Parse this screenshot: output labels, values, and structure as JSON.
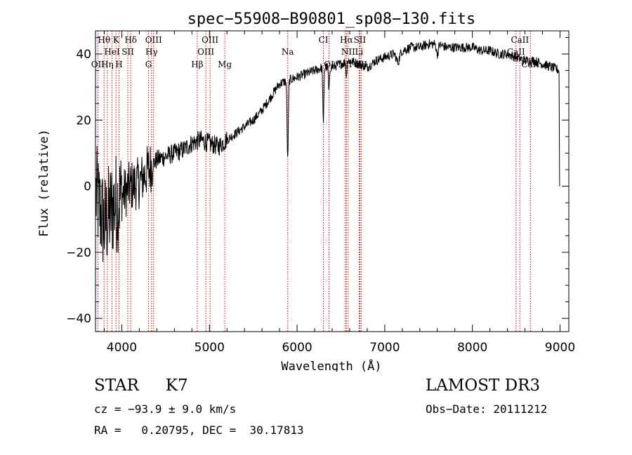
{
  "chart_data": {
    "type": "line",
    "title": "spec−55908−B90801_sp08−130.fits",
    "xlabel": "Wavelength (Å)",
    "ylabel": "Flux (relative)",
    "xlim": [
      3700,
      9100
    ],
    "ylim": [
      -44,
      47
    ],
    "xticks": [
      {
        "value": 4000,
        "label": "4000"
      },
      {
        "value": 5000,
        "label": "5000"
      },
      {
        "value": 6000,
        "label": "6000"
      },
      {
        "value": 7000,
        "label": "7000"
      },
      {
        "value": 8000,
        "label": "8000"
      },
      {
        "value": 9000,
        "label": "9000"
      }
    ],
    "yticks": [
      {
        "value": -40,
        "label": "−40"
      },
      {
        "value": -20,
        "label": "−20"
      },
      {
        "value": 0,
        "label": "0"
      },
      {
        "value": 20,
        "label": "20"
      },
      {
        "value": 40,
        "label": "40"
      }
    ],
    "continuum": [
      [
        3700,
        -2
      ],
      [
        3800,
        -12
      ],
      [
        3900,
        -6
      ],
      [
        4000,
        -3
      ],
      [
        4100,
        0
      ],
      [
        4200,
        1
      ],
      [
        4300,
        5
      ],
      [
        4400,
        8
      ],
      [
        4500,
        9
      ],
      [
        4600,
        10
      ],
      [
        4700,
        11
      ],
      [
        4800,
        13
      ],
      [
        4900,
        14
      ],
      [
        5000,
        13
      ],
      [
        5100,
        12
      ],
      [
        5200,
        14
      ],
      [
        5300,
        16
      ],
      [
        5400,
        18
      ],
      [
        5500,
        20
      ],
      [
        5600,
        23
      ],
      [
        5700,
        27
      ],
      [
        5800,
        31
      ],
      [
        5900,
        32
      ],
      [
        6000,
        33
      ],
      [
        6100,
        34
      ],
      [
        6200,
        35
      ],
      [
        6300,
        36
      ],
      [
        6400,
        36
      ],
      [
        6500,
        37
      ],
      [
        6600,
        38
      ],
      [
        6700,
        37
      ],
      [
        6800,
        36
      ],
      [
        6900,
        38
      ],
      [
        7000,
        39
      ],
      [
        7100,
        40
      ],
      [
        7200,
        41
      ],
      [
        7300,
        42
      ],
      [
        7400,
        42
      ],
      [
        7500,
        43
      ],
      [
        7600,
        43
      ],
      [
        7700,
        42
      ],
      [
        7800,
        42
      ],
      [
        7900,
        42
      ],
      [
        8000,
        42
      ],
      [
        8100,
        41
      ],
      [
        8200,
        41
      ],
      [
        8300,
        40
      ],
      [
        8400,
        40
      ],
      [
        8500,
        39
      ],
      [
        8600,
        38
      ],
      [
        8700,
        38
      ],
      [
        8800,
        37
      ],
      [
        8900,
        36
      ],
      [
        9000,
        35
      ]
    ],
    "absorption_features": [
      {
        "center": 5893,
        "depth": 24,
        "width": 10
      },
      {
        "center": 6300,
        "depth": 18,
        "width": 8
      },
      {
        "center": 6364,
        "depth": 8,
        "width": 8
      },
      {
        "center": 6563,
        "depth": 5,
        "width": 6
      },
      {
        "center": 7150,
        "depth": 3,
        "width": 25
      },
      {
        "center": 7600,
        "depth": 3,
        "width": 15
      }
    ],
    "spectral_lines": [
      {
        "name": "Hθ",
        "wavelength": 3798,
        "row": 0
      },
      {
        "name": "K",
        "wavelength": 3934,
        "row": 0
      },
      {
        "name": "Hδ",
        "wavelength": 4102,
        "row": 0
      },
      {
        "name": "OIII",
        "wavelength": 4363,
        "row": 0
      },
      {
        "name": "OIII",
        "wavelength": 5007,
        "row": 0
      },
      {
        "name": "CI",
        "wavelength": 6300,
        "row": 0
      },
      {
        "name": "Hα",
        "wavelength": 6563,
        "row": 0
      },
      {
        "name": "SII",
        "wavelength": 6716,
        "row": 0
      },
      {
        "name": "CaII",
        "wavelength": 8542,
        "row": 0
      },
      {
        "name": "HeI",
        "wavelength": 3889,
        "row": 1
      },
      {
        "name": "SII",
        "wavelength": 4069,
        "row": 1
      },
      {
        "name": "Hγ",
        "wavelength": 4340,
        "row": 1
      },
      {
        "name": "OIII",
        "wavelength": 4959,
        "row": 1
      },
      {
        "name": "Na",
        "wavelength": 5893,
        "row": 1
      },
      {
        "name": "NII",
        "wavelength": 6583,
        "row": 1
      },
      {
        "name": "Li",
        "wavelength": 6708,
        "row": 1
      },
      {
        "name": "CaII",
        "wavelength": 8498,
        "row": 1
      },
      {
        "name": "OII",
        "wavelength": 3727,
        "row": 2
      },
      {
        "name": "Hη",
        "wavelength": 3835,
        "row": 2
      },
      {
        "name": "H",
        "wavelength": 3968,
        "row": 2
      },
      {
        "name": "G",
        "wavelength": 4305,
        "row": 2
      },
      {
        "name": "Hβ",
        "wavelength": 4861,
        "row": 2
      },
      {
        "name": "Mg",
        "wavelength": 5175,
        "row": 2
      },
      {
        "name": "OI",
        "wavelength": 6364,
        "row": 2
      },
      {
        "name": "NII",
        "wavelength": 6548,
        "row": 2
      },
      {
        "name": "SII",
        "wavelength": 6731,
        "row": 2
      },
      {
        "name": "CaII",
        "wavelength": 8662,
        "row": 2
      }
    ],
    "colors": {
      "spectrum": "#000000",
      "lines": "#cc0000",
      "axes": "#000000"
    }
  },
  "info": {
    "object_class": "STAR",
    "subclass": "K7",
    "survey": "LAMOST DR3",
    "cz_label": "cz = −93.9 ± 9.0 km/s",
    "obs_label": "Obs−Date: 20111212",
    "radec_label": "RA =   0.20795, DEC =  30.17813"
  }
}
